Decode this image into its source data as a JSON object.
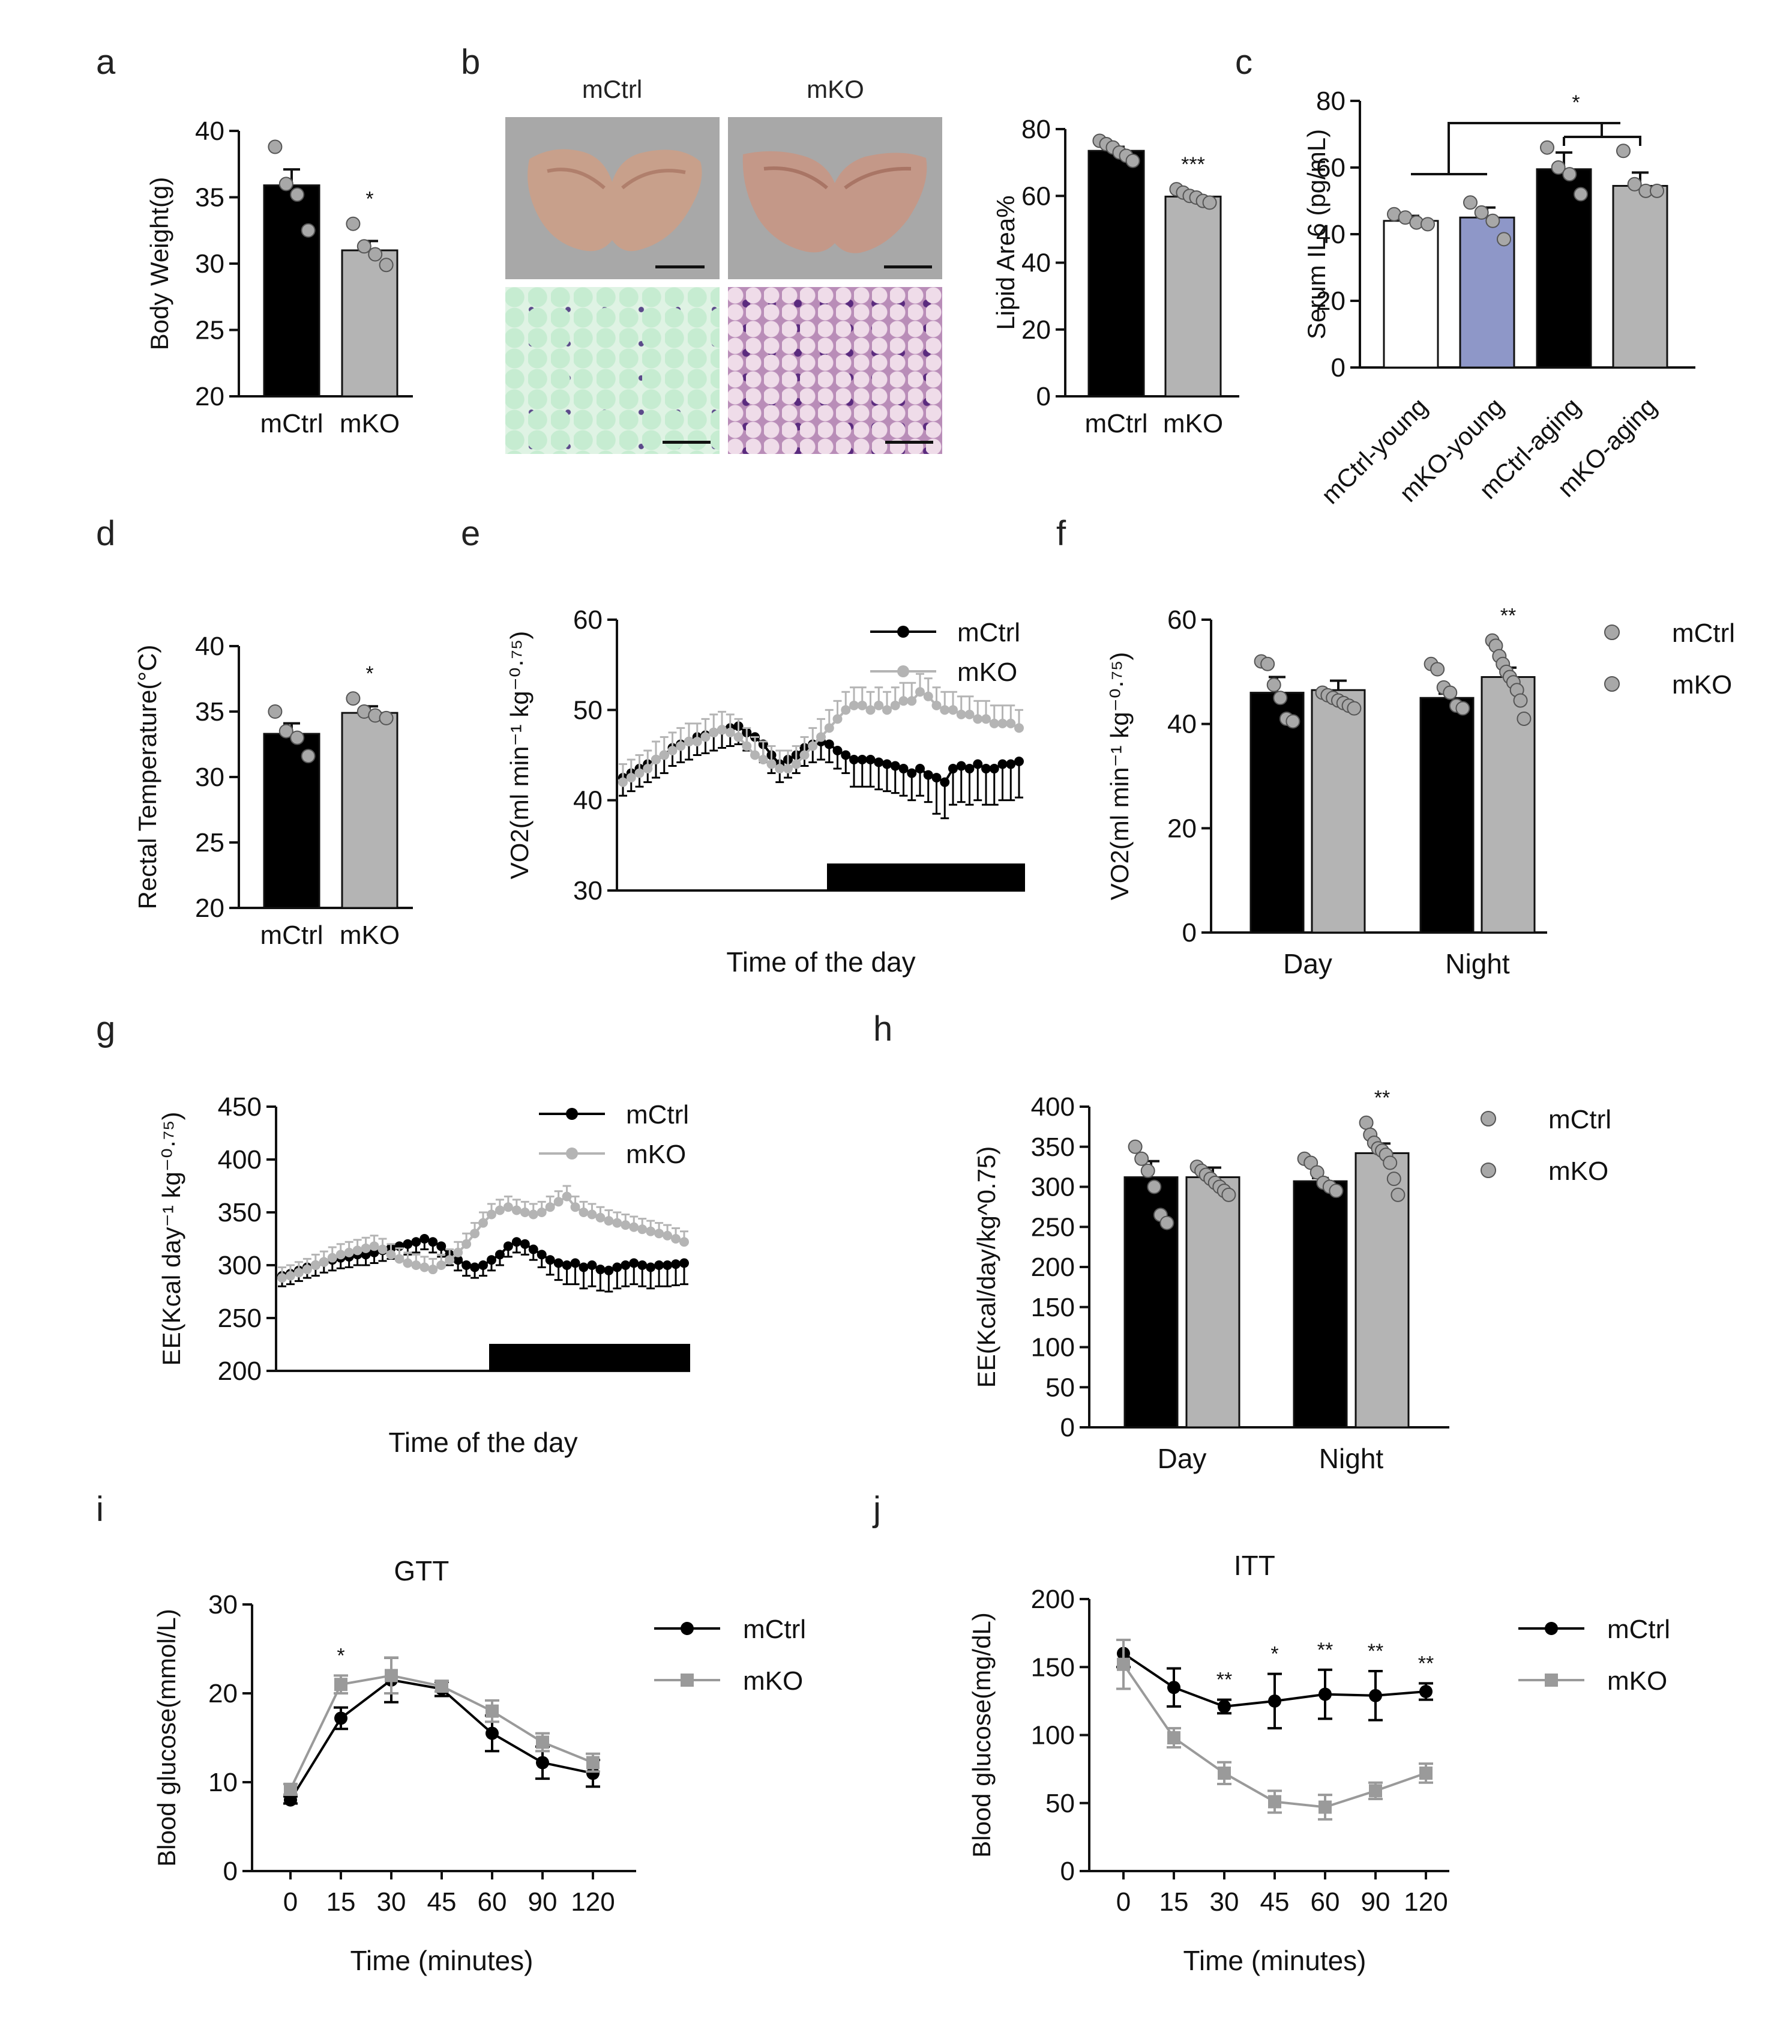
{
  "panel_labels": [
    "a",
    "b",
    "c",
    "d",
    "e",
    "f",
    "g",
    "h",
    "i",
    "j"
  ],
  "colors": {
    "mctrl": "#000000",
    "mko": "#b4b4b4",
    "young_ctrl": "#ffffff",
    "young_ko": "#8e97c8",
    "axis": "#111111"
  },
  "panel_b_images": {
    "col1": "mCtrl",
    "col2": "mKO"
  },
  "chart_data": [
    {
      "id": "a",
      "type": "bar",
      "title": "",
      "xlabel": "",
      "ylabel": "Body Weight(g)",
      "ylim": [
        20,
        40
      ],
      "yticks": [
        20,
        25,
        30,
        35,
        40
      ],
      "categories": [
        "mCtrl",
        "mKO"
      ],
      "values": [
        35.9,
        31.0
      ],
      "errors": [
        1.2,
        0.7
      ],
      "bar_colors": [
        "#000000",
        "#b4b4b4"
      ],
      "points": [
        [
          38.8,
          36.0,
          35.2,
          32.5
        ],
        [
          33.0,
          31.3,
          30.7,
          29.9
        ]
      ],
      "annotations": [
        {
          "bar": 1,
          "text": "*"
        }
      ]
    },
    {
      "id": "b",
      "type": "bar",
      "title": "",
      "xlabel": "",
      "ylabel": "Lipid Area%",
      "ylim": [
        0,
        80
      ],
      "yticks": [
        0,
        20,
        40,
        60,
        80
      ],
      "categories": [
        "mCtrl",
        "mKO"
      ],
      "values": [
        73.5,
        59.8
      ],
      "errors": [
        1.2,
        0.9
      ],
      "bar_colors": [
        "#000000",
        "#b4b4b4"
      ],
      "points": [
        [
          76.5,
          75.5,
          74.5,
          73.0,
          72.0,
          70.5
        ],
        [
          62.0,
          61.0,
          60.0,
          59.5,
          58.5,
          58.0
        ]
      ],
      "annotations": [
        {
          "bar": 1,
          "text": "***"
        }
      ]
    },
    {
      "id": "c",
      "type": "bar",
      "title": "",
      "xlabel": "",
      "ylabel": "Serum IL6 (pg/mL)",
      "ylim": [
        0,
        80
      ],
      "yticks": [
        0,
        20,
        40,
        60,
        80
      ],
      "categories": [
        "mCtrl-young",
        "mKO-young",
        "mCtrl-aging",
        "mKO-aging"
      ],
      "values": [
        44.0,
        45.0,
        59.5,
        54.5
      ],
      "errors": [
        1.5,
        3.0,
        5.0,
        4.0
      ],
      "bar_colors": [
        "#ffffff",
        "#8e97c8",
        "#000000",
        "#b4b4b4"
      ],
      "points": [
        [
          46.0,
          45.0,
          43.5,
          43.0
        ],
        [
          49.5,
          46.5,
          44.0,
          38.5
        ],
        [
          66.0,
          60.0,
          58.0,
          52.0
        ],
        [
          65.0,
          55.0,
          53.0,
          53.0
        ]
      ],
      "annotations": [
        {
          "bar": "bracket",
          "text": "*"
        }
      ]
    },
    {
      "id": "d",
      "type": "bar",
      "title": "",
      "xlabel": "",
      "ylabel": "Rectal Temperature(°C)",
      "ylim": [
        20,
        40
      ],
      "yticks": [
        20,
        25,
        30,
        35,
        40
      ],
      "categories": [
        "mCtrl",
        "mKO"
      ],
      "values": [
        33.3,
        34.9
      ],
      "errors": [
        0.8,
        0.5
      ],
      "bar_colors": [
        "#000000",
        "#b4b4b4"
      ],
      "points": [
        [
          35.0,
          33.5,
          33.0,
          31.6
        ],
        [
          36.0,
          35.0,
          34.7,
          34.5
        ]
      ],
      "annotations": [
        {
          "bar": 1,
          "text": "*"
        }
      ]
    },
    {
      "id": "e",
      "type": "line",
      "title": "",
      "xlabel": "Time of the day",
      "ylabel": "VO2(ml min⁻¹ kg⁻⁰·⁷⁵)",
      "ylim": [
        30,
        60
      ],
      "yticks": [
        30,
        40,
        50,
        60
      ],
      "series": [
        {
          "name": "mCtrl",
          "color": "#000000",
          "values": [
            42.5,
            43.0,
            43.5,
            44.0,
            44.5,
            45.0,
            45.8,
            46.2,
            46.5,
            47.0,
            47.2,
            47.5,
            47.8,
            48.0,
            48.2,
            47.5,
            47.0,
            46.2,
            45.0,
            44.0,
            44.5,
            45.0,
            45.8,
            46.2,
            46.5,
            46.2,
            45.5,
            45.0,
            44.5,
            44.5,
            44.5,
            44.2,
            44.0,
            43.8,
            43.5,
            43.0,
            43.5,
            42.8,
            42.5,
            42.0,
            43.5,
            43.8,
            43.5,
            44.0,
            43.5,
            43.5,
            44.0,
            44.0,
            44.3
          ],
          "errors": [
            2,
            2,
            2,
            2,
            2,
            2,
            2,
            2,
            2,
            2,
            2,
            2,
            2,
            2,
            2,
            2,
            2,
            2,
            2,
            2,
            2,
            2,
            2,
            2,
            2,
            2,
            2,
            2,
            3,
            3,
            3,
            3,
            3,
            3,
            3,
            3,
            3,
            3,
            4,
            4,
            4,
            4,
            4,
            4,
            4,
            4,
            4,
            4,
            4
          ]
        },
        {
          "name": "mKO",
          "color": "#b4b4b4",
          "values": [
            42.0,
            42.5,
            43.0,
            43.5,
            44.5,
            45.0,
            45.5,
            46.0,
            46.5,
            46.5,
            47.0,
            47.5,
            47.8,
            47.5,
            47.0,
            46.0,
            45.0,
            44.5,
            44.0,
            43.5,
            43.5,
            44.0,
            45.0,
            46.0,
            47.0,
            48.0,
            49.0,
            50.0,
            50.5,
            50.5,
            50.0,
            50.5,
            50.0,
            50.5,
            51.0,
            51.0,
            52.0,
            51.5,
            50.5,
            50.0,
            50.0,
            49.5,
            49.5,
            49.0,
            49.0,
            48.5,
            48.5,
            48.5,
            48.0
          ],
          "errors": [
            2,
            2,
            2,
            2,
            2,
            2,
            2,
            2,
            2,
            2,
            2,
            2,
            2,
            2,
            2,
            2,
            2,
            2,
            2,
            2,
            2,
            2,
            2,
            2,
            2,
            2,
            2,
            2,
            2,
            2,
            2,
            2,
            2,
            2,
            2,
            2,
            2,
            2,
            2,
            2,
            2,
            2,
            2,
            2,
            2,
            2,
            2,
            2,
            2
          ]
        }
      ],
      "dark_period": [
        0.5,
        1.0
      ]
    },
    {
      "id": "f",
      "type": "bar",
      "title": "",
      "xlabel": "",
      "ylabel": "VO2(ml min⁻¹ kg⁻⁰·⁷⁵)",
      "ylim": [
        0,
        60
      ],
      "yticks": [
        0,
        20,
        40,
        60
      ],
      "categories": [
        "Day",
        "Night"
      ],
      "series": [
        {
          "name": "mCtrl",
          "color": "#000000",
          "values": [
            46.0,
            45.0
          ],
          "errors": [
            3.0,
            0.8
          ]
        },
        {
          "name": "mKO",
          "color": "#b4b4b4",
          "values": [
            46.5,
            49.0
          ],
          "errors": [
            1.8,
            1.8
          ]
        }
      ],
      "points": [
        [
          [
            52.0,
            51.5,
            47.5,
            45.0,
            41.0,
            40.5
          ],
          [
            46.0,
            45.5,
            45.0,
            44.5,
            44.0,
            43.5,
            43.0
          ]
        ],
        [
          [
            51.5,
            50.5,
            47.0,
            46.0,
            43.5,
            43.0
          ],
          [
            56.0,
            55.0,
            53.0,
            51.5,
            50.0,
            49.0,
            48.0,
            46.5,
            44.5,
            41.0
          ]
        ]
      ],
      "annotations": [
        {
          "group": 1,
          "series": 1,
          "text": "**"
        }
      ]
    },
    {
      "id": "g",
      "type": "line",
      "title": "",
      "xlabel": "Time of the day",
      "ylabel": "EE(Kcal day⁻¹ kg⁻⁰·⁷⁵)",
      "ylim": [
        200,
        450
      ],
      "yticks": [
        200,
        250,
        300,
        350,
        400,
        450
      ],
      "series": [
        {
          "name": "mCtrl",
          "color": "#000000",
          "values": [
            290,
            292,
            295,
            298,
            300,
            303,
            305,
            307,
            308,
            310,
            310,
            312,
            314,
            316,
            318,
            320,
            322,
            325,
            322,
            318,
            310,
            305,
            300,
            298,
            300,
            305,
            310,
            318,
            322,
            320,
            315,
            310,
            305,
            302,
            300,
            302,
            298,
            300,
            296,
            295,
            298,
            300,
            302,
            300,
            298,
            300,
            300,
            301,
            302
          ],
          "errors": [
            10,
            10,
            10,
            10,
            10,
            10,
            10,
            10,
            10,
            10,
            10,
            10,
            10,
            10,
            10,
            10,
            10,
            10,
            10,
            10,
            10,
            10,
            10,
            10,
            10,
            10,
            10,
            10,
            10,
            10,
            10,
            12,
            14,
            16,
            18,
            20,
            20,
            20,
            20,
            20,
            20,
            20,
            20,
            20,
            20,
            20,
            20,
            20,
            20
          ]
        },
        {
          "name": "mKO",
          "color": "#b4b4b4",
          "values": [
            288,
            290,
            293,
            296,
            300,
            303,
            307,
            310,
            312,
            314,
            316,
            318,
            315,
            310,
            306,
            302,
            300,
            298,
            296,
            300,
            305,
            312,
            320,
            330,
            340,
            348,
            352,
            355,
            352,
            350,
            348,
            350,
            355,
            360,
            365,
            355,
            350,
            348,
            345,
            342,
            340,
            338,
            336,
            334,
            332,
            330,
            328,
            325,
            322
          ],
          "errors": [
            10,
            10,
            10,
            10,
            10,
            10,
            10,
            10,
            10,
            10,
            10,
            10,
            10,
            10,
            10,
            10,
            10,
            10,
            10,
            10,
            10,
            10,
            10,
            10,
            10,
            10,
            10,
            10,
            10,
            10,
            10,
            10,
            10,
            10,
            10,
            10,
            10,
            10,
            10,
            10,
            10,
            10,
            10,
            10,
            10,
            10,
            10,
            10,
            10
          ]
        }
      ],
      "dark_period": [
        0.5,
        1.0
      ]
    },
    {
      "id": "h",
      "type": "bar",
      "title": "",
      "xlabel": "",
      "ylabel": "EE(Kcal/day/kg^0.75)",
      "ylim": [
        0,
        400
      ],
      "yticks": [
        0,
        50,
        100,
        150,
        200,
        250,
        300,
        350,
        400
      ],
      "categories": [
        "Day",
        "Night"
      ],
      "series": [
        {
          "name": "mCtrl",
          "color": "#000000",
          "values": [
            312,
            307
          ],
          "errors": [
            20,
            4
          ]
        },
        {
          "name": "mKO",
          "color": "#b4b4b4",
          "values": [
            312,
            342
          ],
          "errors": [
            12,
            12
          ]
        }
      ],
      "points": [
        [
          [
            350,
            335,
            320,
            300,
            265,
            255
          ],
          [
            325,
            320,
            315,
            310,
            305,
            300,
            295,
            290
          ]
        ],
        [
          [
            335,
            330,
            318,
            305,
            300,
            295
          ],
          [
            380,
            365,
            355,
            348,
            345,
            340,
            330,
            310,
            290
          ]
        ]
      ],
      "annotations": [
        {
          "group": 1,
          "series": 1,
          "text": "**"
        }
      ]
    },
    {
      "id": "i",
      "type": "line",
      "title": "GTT",
      "xlabel": "Time (minutes)",
      "ylabel": "Blood glucose(mmol/L)",
      "ylim": [
        0,
        30
      ],
      "yticks": [
        0,
        10,
        20,
        30
      ],
      "x": [
        "0",
        "15",
        "30",
        "45",
        "60",
        "90",
        "120"
      ],
      "series": [
        {
          "name": "mCtrl",
          "color": "#000000",
          "marker": "circle",
          "values": [
            8.0,
            17.2,
            21.5,
            20.5,
            15.5,
            12.2,
            11.0
          ],
          "errors": [
            0.4,
            1.2,
            2.5,
            0.8,
            2.0,
            1.8,
            1.5
          ]
        },
        {
          "name": "mKO",
          "color": "#9a9a9a",
          "marker": "square",
          "values": [
            9.2,
            21.0,
            22.0,
            20.8,
            18.0,
            14.5,
            12.2
          ],
          "errors": [
            0.6,
            1.0,
            2.0,
            0.6,
            1.2,
            1.0,
            1.0
          ]
        }
      ],
      "annotations": [
        {
          "x": 1,
          "text": "*"
        }
      ]
    },
    {
      "id": "j",
      "type": "line",
      "title": "ITT",
      "xlabel": "Time (minutes)",
      "ylabel": "Blood glucose(mg/dL)",
      "ylim": [
        0,
        200
      ],
      "yticks": [
        0,
        50,
        100,
        150,
        200
      ],
      "x": [
        "0",
        "15",
        "30",
        "45",
        "60",
        "90",
        "120"
      ],
      "series": [
        {
          "name": "mCtrl",
          "color": "#000000",
          "marker": "circle",
          "values": [
            160,
            135,
            121,
            125,
            130,
            129,
            132
          ],
          "errors": [
            10,
            14,
            5,
            20,
            18,
            18,
            6
          ]
        },
        {
          "name": "mKO",
          "color": "#9a9a9a",
          "marker": "square",
          "values": [
            152,
            98,
            72,
            51,
            47,
            59,
            72
          ],
          "errors": [
            18,
            7,
            8,
            8,
            9,
            6,
            7
          ]
        }
      ],
      "annotations": [
        {
          "x": 2,
          "text": "**"
        },
        {
          "x": 3,
          "text": "*"
        },
        {
          "x": 4,
          "text": "**"
        },
        {
          "x": 5,
          "text": "**"
        },
        {
          "x": 6,
          "text": "**"
        }
      ]
    }
  ]
}
